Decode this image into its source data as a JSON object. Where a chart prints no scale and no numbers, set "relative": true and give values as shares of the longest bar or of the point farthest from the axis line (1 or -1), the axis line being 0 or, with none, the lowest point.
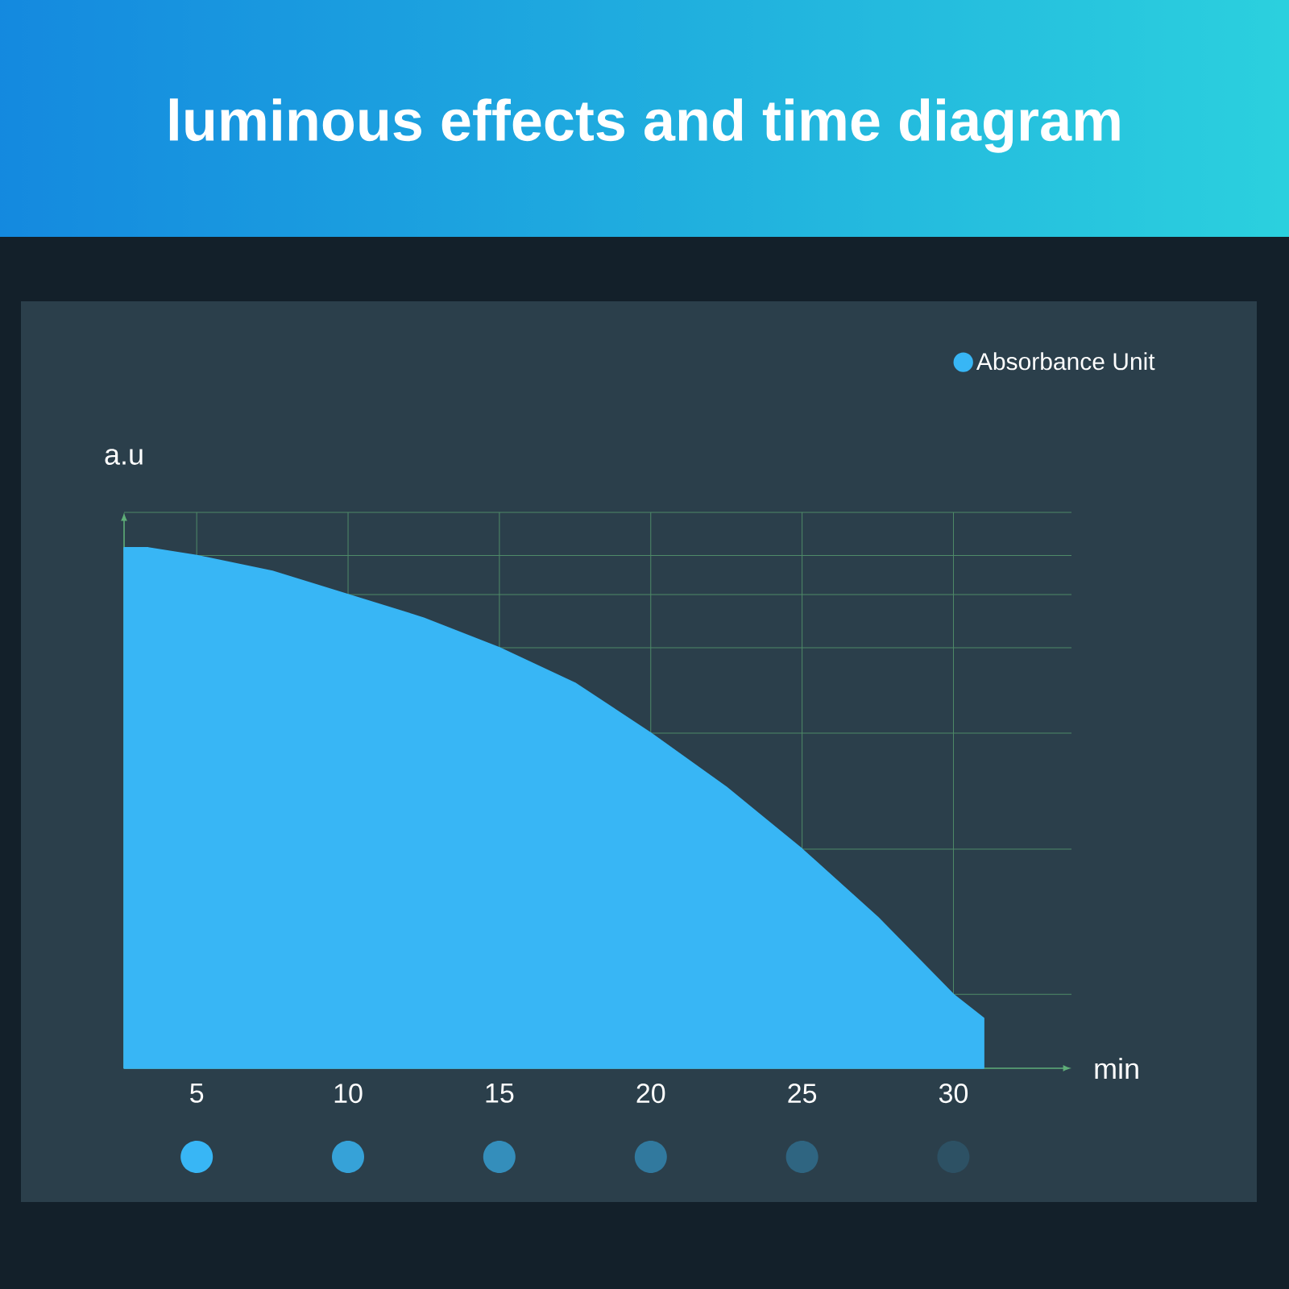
{
  "chart_data": {
    "type": "area",
    "title": "luminous effects and time diagram",
    "xlabel": "min",
    "ylabel": "a.u",
    "relative": true,
    "xlim": [
      2.6,
      33.9
    ],
    "xticks": [
      5,
      10,
      15,
      20,
      25,
      30
    ],
    "grid": true,
    "legend": "top right",
    "x": [
      2.6,
      3.4,
      5,
      7.5,
      10,
      12.5,
      15,
      17.5,
      20,
      22.5,
      25,
      27.5,
      30,
      31
    ],
    "series": [
      {
        "name": "Absorbance Unit",
        "color": "#38b6f5",
        "values": [
          1.0,
          1.0,
          0.985,
          0.955,
          0.91,
          0.865,
          0.808,
          0.74,
          0.644,
          0.54,
          0.421,
          0.29,
          0.142,
          0.096
        ]
      }
    ]
  }
}
